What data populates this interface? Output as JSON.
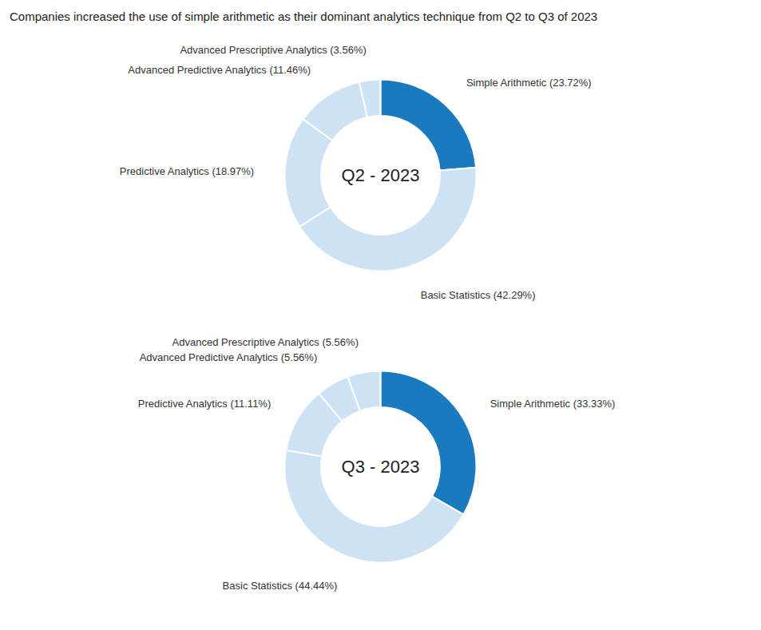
{
  "title": "Companies increased the use of simple arithmetic as their dominant analytics technique from Q2 to Q3 of 2023",
  "chart_data": [
    {
      "type": "pie",
      "title": "Q2 - 2023",
      "categories": [
        "Simple Arithmetic (23.72%)",
        "Basic Statistics (42.29%)",
        "Predictive Analytics (18.97%)",
        "Advanced Predictive Analytics (11.46%)",
        "Advanced Prescriptive Analytics (3.56%)"
      ],
      "values": [
        23.72,
        42.29,
        18.97,
        11.46,
        3.56
      ],
      "colors": [
        "#1a7abf",
        "#cde3f5",
        "#cde3f5",
        "#cde3f5",
        "#cde3f5"
      ]
    },
    {
      "type": "pie",
      "title": "Q3 - 2023",
      "categories": [
        "Simple Arithmetic (33.33%)",
        "Basic Statistics (44.44%)",
        "Predictive Analytics (11.11%)",
        "Advanced Predictive Analytics (5.56%)",
        "Advanced Prescriptive Analytics (5.56%)"
      ],
      "values": [
        33.33,
        44.44,
        11.11,
        5.56,
        5.56
      ],
      "colors": [
        "#1a7abf",
        "#cde3f5",
        "#cde3f5",
        "#cde3f5",
        "#cde3f5"
      ]
    }
  ]
}
